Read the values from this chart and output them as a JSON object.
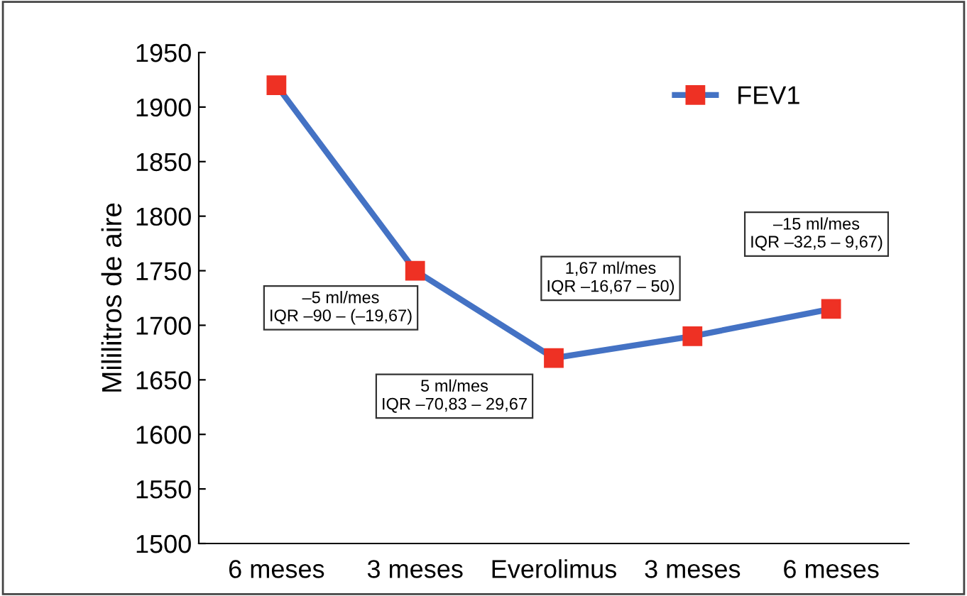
{
  "chart_data": {
    "type": "line",
    "ylabel": "Mililitros de aire",
    "categories": [
      "6 meses",
      "3 meses",
      "Everolimus",
      "3 meses",
      "6 meses"
    ],
    "series": [
      {
        "name": "FEV1",
        "color": "#4472c4",
        "values": [
          1920,
          1750,
          1670,
          1690,
          1715
        ]
      }
    ],
    "ylim": [
      1500,
      1950
    ],
    "yticks": [
      1500,
      1550,
      1600,
      1650,
      1700,
      1750,
      1800,
      1850,
      1900,
      1950
    ],
    "marker": "square",
    "line_style": "solid",
    "grid": false,
    "legend": "top right",
    "annotations": [
      "–5 ml/mes\nIQR –90 – (–19,67)",
      "5 ml/mes\nIQR –70,83 – 29,67",
      "1,67 ml/mes\nIQR –16,67 – 50)",
      "–15 ml/mes\nIQR –32,5 – 9,67)"
    ]
  }
}
